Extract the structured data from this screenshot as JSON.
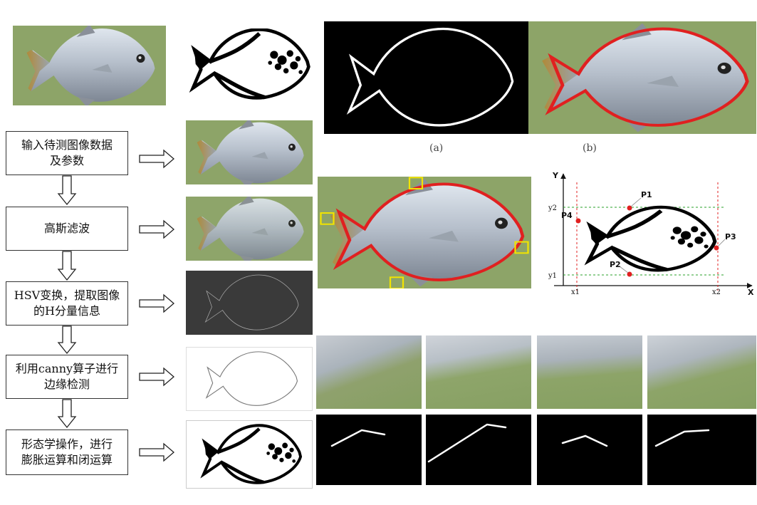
{
  "flowchart": {
    "steps": [
      {
        "line1": "输入待测图像数据",
        "line2": "及参数"
      },
      {
        "line1": "高斯滤波",
        "line2": ""
      },
      {
        "line1": "HSV变换，提取图像",
        "line2": "的H分量信息"
      },
      {
        "line1": "利用canny算子进行",
        "line2": "边缘检测"
      },
      {
        "line1": "形态学操作，进行",
        "line2": "膨胀运算和闭运算"
      }
    ]
  },
  "captions": {
    "a": "(a)",
    "b": "(b)"
  },
  "coordinate_diagram": {
    "axis_x": "X",
    "axis_y": "Y",
    "x_ticks": [
      "x1",
      "x2"
    ],
    "y_ticks": [
      "y2",
      "y1"
    ],
    "points": [
      "P1",
      "P2",
      "P3",
      "P4"
    ]
  },
  "colors": {
    "background_green": "#8da468",
    "fish_silver": "#b7c0cc",
    "contour_red": "#e02020",
    "marker_yellow": "#f2e400"
  }
}
